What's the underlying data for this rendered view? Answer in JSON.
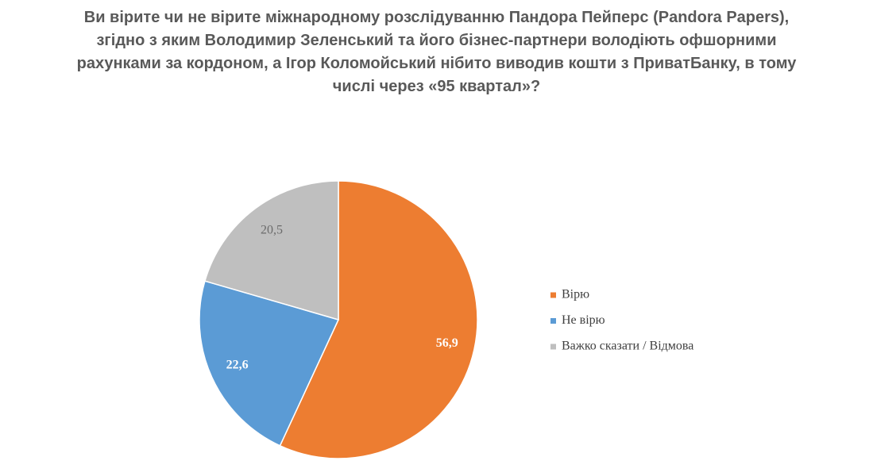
{
  "chart_data": {
    "type": "pie",
    "title": [
      "Ви вірите чи не вірите міжнародному розслідуванню Пандора Пейперс (Pandora Papers),",
      "згідно з яким Володимир Зеленський та його бізнес-партнери володіють  офшорними",
      "рахунками за кордоном, а Ігор Коломойський нібито виводив кошти з ПриватБанку, в тому",
      "числі через «95 квартал»?"
    ],
    "categories": [
      "Вірю",
      "Не вірю",
      "Важко сказати / Відмова"
    ],
    "values": [
      56.9,
      22.6,
      20.5
    ],
    "value_labels": [
      "56,9",
      "22,6",
      "20,5"
    ],
    "colors": [
      "#ed7d31",
      "#5b9bd5",
      "#bfbfbf"
    ],
    "legend": "right"
  }
}
